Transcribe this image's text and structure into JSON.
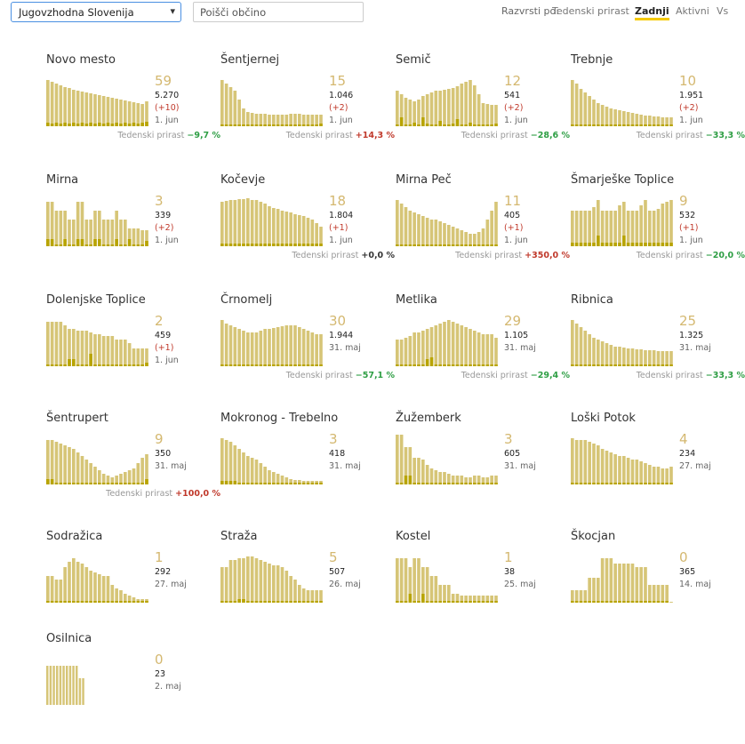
{
  "header": {
    "region_select": "Jugovzhodna Slovenija",
    "search_placeholder": "Poišči občino",
    "sort_label": "Razvrsti po:",
    "sort_options": [
      "Tedenski prirast",
      "Zadnji",
      "Aktivni",
      "Vs"
    ],
    "active_sort": "Zadnji"
  },
  "colors": {
    "bar": "#d6c577",
    "bar_dark": "#b8a400",
    "accent": "#f5c900",
    "value": "#d4b870",
    "good": "#2e9e44",
    "bad": "#c0392b"
  },
  "trend_label": "Tedenski prirast",
  "cards": [
    {
      "name": "Novo mesto",
      "value": "59",
      "total": "5.270",
      "delta": "(+10)",
      "date": "1. jun",
      "trend": "−9,7 %",
      "trend_class": "good",
      "bars": [
        52,
        50,
        48,
        46,
        44,
        43,
        41,
        40,
        39,
        38,
        37,
        36,
        35,
        34,
        33,
        32,
        31,
        30,
        29,
        28,
        27,
        26,
        25,
        28
      ],
      "dark": [
        4,
        3,
        4,
        3,
        4,
        3,
        4,
        3,
        4,
        3,
        4,
        3,
        4,
        3,
        4,
        3,
        4,
        3,
        4,
        3,
        4,
        3,
        4,
        5
      ]
    },
    {
      "name": "Šentjernej",
      "value": "15",
      "total": "1.046",
      "delta": "(+2)",
      "date": "1. jun",
      "trend": "+14,3 %",
      "trend_class": "bad",
      "bars": [
        52,
        48,
        44,
        40,
        30,
        20,
        16,
        15,
        14,
        14,
        14,
        13,
        13,
        13,
        13,
        13,
        14,
        14,
        14,
        13,
        13,
        13,
        13,
        13
      ],
      "dark": [
        2,
        2,
        2,
        2,
        2,
        2,
        2,
        2,
        2,
        2,
        2,
        2,
        2,
        2,
        2,
        2,
        2,
        2,
        2,
        2,
        2,
        2,
        2,
        3
      ]
    },
    {
      "name": "Semič",
      "value": "12",
      "total": "541",
      "delta": "(+2)",
      "date": "1. jun",
      "trend": "−28,6 %",
      "trend_class": "good",
      "bars": [
        40,
        36,
        32,
        30,
        28,
        30,
        34,
        36,
        38,
        40,
        40,
        41,
        42,
        43,
        45,
        48,
        50,
        52,
        46,
        36,
        26,
        25,
        24,
        24
      ],
      "dark": [
        2,
        10,
        2,
        2,
        4,
        2,
        10,
        3,
        2,
        2,
        6,
        2,
        2,
        3,
        8,
        2,
        2,
        4,
        2,
        2,
        2,
        2,
        2,
        3
      ]
    },
    {
      "name": "Trebnje",
      "value": "10",
      "total": "1.951",
      "delta": "(+2)",
      "date": "1. jun",
      "trend": "−33,3 %",
      "trend_class": "good",
      "bars": [
        52,
        48,
        42,
        38,
        34,
        30,
        26,
        24,
        22,
        20,
        19,
        18,
        17,
        16,
        15,
        14,
        13,
        12,
        12,
        11,
        11,
        10,
        10,
        10
      ],
      "dark": [
        2,
        2,
        2,
        2,
        2,
        2,
        2,
        2,
        2,
        2,
        2,
        2,
        2,
        2,
        2,
        2,
        2,
        2,
        2,
        2,
        2,
        2,
        2,
        2
      ]
    },
    {
      "name": "Mirna",
      "value": "3",
      "total": "339",
      "delta": "(+2)",
      "date": "1. jun",
      "trend": "",
      "trend_class": "",
      "bars": [
        50,
        50,
        40,
        40,
        40,
        30,
        30,
        50,
        50,
        30,
        30,
        40,
        40,
        30,
        30,
        30,
        40,
        30,
        30,
        20,
        20,
        20,
        18,
        18
      ],
      "dark": [
        8,
        8,
        2,
        2,
        8,
        2,
        2,
        8,
        8,
        2,
        2,
        8,
        8,
        2,
        2,
        2,
        8,
        2,
        2,
        8,
        2,
        2,
        2,
        6
      ]
    },
    {
      "name": "Kočevje",
      "value": "18",
      "total": "1.804",
      "delta": "(+1)",
      "date": "1. jun",
      "trend": "+0,0 %",
      "trend_class": "neutral",
      "bars": [
        50,
        51,
        52,
        52,
        53,
        53,
        54,
        52,
        52,
        50,
        48,
        45,
        43,
        42,
        40,
        39,
        38,
        36,
        35,
        34,
        32,
        30,
        26,
        22
      ],
      "dark": [
        3,
        3,
        3,
        3,
        3,
        3,
        3,
        3,
        3,
        3,
        3,
        3,
        3,
        3,
        3,
        3,
        3,
        3,
        3,
        3,
        3,
        3,
        3,
        3
      ]
    },
    {
      "name": "Mirna Peč",
      "value": "11",
      "total": "405",
      "delta": "(+1)",
      "date": "1. jun",
      "trend": "+350,0 %",
      "trend_class": "bad",
      "bars": [
        52,
        48,
        44,
        40,
        38,
        36,
        34,
        32,
        30,
        30,
        28,
        26,
        24,
        22,
        20,
        18,
        16,
        14,
        14,
        16,
        20,
        30,
        40,
        50
      ],
      "dark": [
        2,
        2,
        2,
        2,
        2,
        2,
        2,
        2,
        2,
        2,
        2,
        2,
        2,
        2,
        2,
        2,
        2,
        2,
        2,
        2,
        2,
        2,
        2,
        2
      ]
    },
    {
      "name": "Šmarješke Toplice",
      "value": "9",
      "total": "532",
      "delta": "(+1)",
      "date": "1. jun",
      "trend": "−20,0 %",
      "trend_class": "good",
      "bars": [
        40,
        40,
        40,
        40,
        40,
        44,
        52,
        40,
        40,
        40,
        40,
        46,
        50,
        40,
        40,
        40,
        46,
        52,
        40,
        40,
        42,
        48,
        50,
        52
      ],
      "dark": [
        4,
        4,
        4,
        4,
        4,
        4,
        12,
        4,
        4,
        4,
        4,
        4,
        12,
        4,
        4,
        4,
        4,
        4,
        4,
        4,
        4,
        4,
        4,
        4
      ]
    },
    {
      "name": "Dolenjske Toplice",
      "value": "2",
      "total": "459",
      "delta": "(+1)",
      "date": "1. jun",
      "trend": "",
      "trend_class": "",
      "bars": [
        50,
        50,
        50,
        50,
        46,
        42,
        42,
        40,
        40,
        40,
        38,
        36,
        36,
        34,
        34,
        34,
        30,
        30,
        30,
        26,
        20,
        20,
        20,
        20
      ],
      "dark": [
        2,
        2,
        2,
        2,
        2,
        8,
        8,
        2,
        2,
        2,
        14,
        2,
        2,
        2,
        2,
        2,
        2,
        2,
        2,
        2,
        2,
        2,
        2,
        4
      ]
    },
    {
      "name": "Črnomelj",
      "value": "30",
      "total": "1.944",
      "delta": "",
      "date": "31. maj",
      "trend": "−57,1 %",
      "trend_class": "good",
      "bars": [
        52,
        48,
        46,
        44,
        42,
        40,
        38,
        38,
        38,
        40,
        42,
        42,
        43,
        44,
        45,
        46,
        46,
        46,
        44,
        42,
        40,
        38,
        36,
        36
      ],
      "dark": [
        2,
        2,
        2,
        2,
        2,
        2,
        2,
        2,
        2,
        2,
        2,
        2,
        2,
        2,
        2,
        2,
        2,
        2,
        2,
        2,
        2,
        2,
        2,
        2
      ]
    },
    {
      "name": "Metlika",
      "value": "29",
      "total": "1.105",
      "delta": "",
      "date": "31. maj",
      "trend": "−29,4 %",
      "trend_class": "good",
      "bars": [
        30,
        30,
        32,
        34,
        38,
        38,
        40,
        42,
        44,
        46,
        48,
        50,
        52,
        50,
        48,
        46,
        44,
        42,
        40,
        38,
        36,
        36,
        36,
        32
      ],
      "dark": [
        2,
        2,
        2,
        2,
        2,
        2,
        2,
        8,
        10,
        2,
        2,
        2,
        2,
        2,
        2,
        2,
        2,
        2,
        2,
        2,
        2,
        2,
        2,
        2
      ]
    },
    {
      "name": "Ribnica",
      "value": "25",
      "total": "1.325",
      "delta": "",
      "date": "31. maj",
      "trend": "−33,3 %",
      "trend_class": "good",
      "bars": [
        52,
        48,
        44,
        40,
        36,
        32,
        30,
        28,
        26,
        24,
        22,
        22,
        21,
        20,
        20,
        19,
        19,
        18,
        18,
        18,
        17,
        17,
        17,
        17
      ],
      "dark": [
        2,
        2,
        2,
        2,
        2,
        2,
        2,
        2,
        2,
        2,
        2,
        2,
        2,
        2,
        2,
        2,
        2,
        2,
        2,
        2,
        2,
        2,
        2,
        2
      ]
    },
    {
      "name": "Šentrupert",
      "value": "9",
      "total": "350",
      "delta": "",
      "date": "31. maj",
      "trend": "+100,0 %",
      "trend_class": "bad",
      "bars": [
        50,
        50,
        48,
        46,
        44,
        42,
        40,
        36,
        32,
        28,
        24,
        20,
        16,
        12,
        10,
        8,
        10,
        12,
        14,
        16,
        18,
        24,
        30,
        34
      ],
      "dark": [
        6,
        6,
        2,
        2,
        2,
        2,
        2,
        2,
        2,
        2,
        2,
        2,
        2,
        2,
        2,
        2,
        2,
        2,
        2,
        2,
        2,
        2,
        2,
        6
      ]
    },
    {
      "name": "Mokronog - Trebelno",
      "value": "3",
      "total": "418",
      "delta": "",
      "date": "31. maj",
      "trend": "",
      "trend_class": "",
      "bars": [
        52,
        50,
        48,
        44,
        40,
        36,
        32,
        30,
        28,
        24,
        20,
        16,
        14,
        12,
        10,
        8,
        6,
        5,
        5,
        4,
        4,
        4,
        4,
        4
      ],
      "dark": [
        4,
        4,
        4,
        4,
        2,
        2,
        2,
        2,
        2,
        2,
        2,
        2,
        2,
        2,
        2,
        2,
        2,
        2,
        2,
        2,
        2,
        2,
        2,
        2
      ]
    },
    {
      "name": "Žužemberk",
      "value": "3",
      "total": "605",
      "delta": "",
      "date": "31. maj",
      "trend": "",
      "trend_class": "",
      "bars": [
        56,
        56,
        42,
        42,
        30,
        30,
        28,
        22,
        18,
        16,
        14,
        14,
        12,
        10,
        10,
        10,
        8,
        8,
        10,
        10,
        8,
        8,
        10,
        10
      ],
      "dark": [
        2,
        2,
        10,
        10,
        2,
        2,
        2,
        2,
        2,
        2,
        2,
        2,
        2,
        2,
        2,
        2,
        2,
        2,
        2,
        2,
        2,
        2,
        2,
        2
      ]
    },
    {
      "name": "Loški Potok",
      "value": "4",
      "total": "234",
      "delta": "",
      "date": "27. maj",
      "trend": "",
      "trend_class": "",
      "bars": [
        52,
        50,
        50,
        50,
        48,
        46,
        44,
        40,
        38,
        36,
        34,
        32,
        32,
        30,
        28,
        28,
        26,
        24,
        22,
        20,
        20,
        18,
        18,
        20
      ],
      "dark": [
        2,
        2,
        2,
        2,
        2,
        2,
        2,
        2,
        2,
        2,
        2,
        2,
        2,
        2,
        2,
        2,
        2,
        2,
        2,
        2,
        2,
        2,
        2,
        2
      ]
    },
    {
      "name": "Sodražica",
      "value": "1",
      "total": "292",
      "delta": "",
      "date": "27. maj",
      "trend": "",
      "trend_class": "",
      "bars": [
        30,
        30,
        26,
        26,
        40,
        46,
        50,
        46,
        44,
        40,
        36,
        34,
        32,
        30,
        30,
        20,
        16,
        14,
        10,
        8,
        6,
        4,
        4,
        4
      ],
      "dark": [
        2,
        2,
        2,
        2,
        2,
        2,
        2,
        2,
        2,
        2,
        2,
        2,
        2,
        2,
        2,
        2,
        2,
        2,
        2,
        2,
        2,
        2,
        2,
        2
      ]
    },
    {
      "name": "Straža",
      "value": "5",
      "total": "507",
      "delta": "",
      "date": "26. maj",
      "trend": "",
      "trend_class": "",
      "bars": [
        40,
        40,
        48,
        48,
        50,
        50,
        52,
        52,
        50,
        48,
        46,
        44,
        42,
        42,
        40,
        36,
        30,
        26,
        20,
        16,
        14,
        14,
        14,
        14
      ],
      "dark": [
        2,
        2,
        2,
        2,
        4,
        4,
        2,
        2,
        2,
        2,
        2,
        2,
        2,
        2,
        2,
        2,
        2,
        2,
        2,
        2,
        2,
        2,
        2,
        2
      ]
    },
    {
      "name": "Kostel",
      "value": "1",
      "total": "38",
      "delta": "",
      "date": "25. maj",
      "trend": "",
      "trend_class": "",
      "bars": [
        50,
        50,
        50,
        40,
        50,
        50,
        40,
        40,
        30,
        30,
        20,
        20,
        20,
        10,
        10,
        8,
        8,
        8,
        8,
        8,
        8,
        8,
        8,
        8
      ],
      "dark": [
        2,
        2,
        2,
        10,
        2,
        2,
        10,
        2,
        2,
        2,
        2,
        2,
        2,
        2,
        2,
        2,
        2,
        2,
        2,
        2,
        2,
        2,
        2,
        2
      ]
    },
    {
      "name": "Škocjan",
      "value": "0",
      "total": "365",
      "delta": "",
      "date": "14. maj",
      "trend": "",
      "trend_class": "",
      "bars": [
        14,
        14,
        14,
        14,
        28,
        28,
        28,
        50,
        50,
        50,
        44,
        44,
        44,
        44,
        44,
        40,
        40,
        40,
        20,
        20,
        20,
        20,
        20,
        1
      ],
      "dark": [
        2,
        2,
        2,
        2,
        2,
        2,
        2,
        2,
        2,
        2,
        2,
        2,
        2,
        2,
        2,
        2,
        2,
        2,
        2,
        2,
        2,
        2,
        2,
        0
      ]
    },
    {
      "name": "Osilnica",
      "value": "0",
      "total": "23",
      "delta": "",
      "date": "2. maj",
      "trend": "",
      "trend_class": "",
      "bars": [
        44,
        44,
        44,
        44,
        44,
        44,
        44,
        44,
        44,
        44,
        30,
        30
      ],
      "dark": [
        0,
        0,
        0,
        0,
        0,
        0,
        0,
        0,
        0,
        0,
        0,
        0
      ]
    }
  ]
}
